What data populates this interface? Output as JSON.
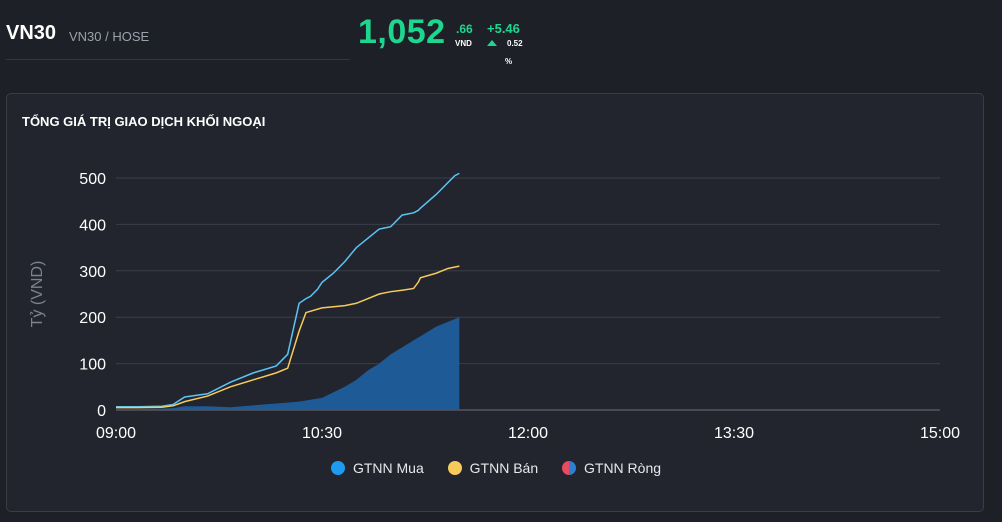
{
  "header": {
    "symbol": "VN30",
    "exchange": "VN30 / HOSE",
    "price": "1,052",
    "price_decimal": ".66",
    "currency": "VND",
    "change": "+5.46",
    "change_pct": "0.52",
    "pct_sign": "%",
    "up_color": "#1fd68f"
  },
  "panel": {
    "title": "TỔNG GIÁ TRỊ GIAO DỊCH KHỐI NGOẠI"
  },
  "chart_data": {
    "type": "line",
    "title": "TỔNG GIÁ TRỊ GIAO DỊCH KHỐI NGOẠI",
    "xlabel": "",
    "ylabel": "Tỷ (VND)",
    "ylim": [
      0,
      500
    ],
    "yticks": [
      0,
      100,
      200,
      300,
      400,
      500
    ],
    "xticks": [
      "09:00",
      "10:30",
      "12:00",
      "13:30",
      "15:00"
    ],
    "xlim": [
      "09:00",
      "15:00"
    ],
    "grid": true,
    "legend_position": "bottom",
    "series": [
      {
        "name": "GTNN Mua",
        "kind": "line",
        "color": "#5bc4f5",
        "x": [
          "09:00",
          "09:10",
          "09:20",
          "09:25",
          "09:30",
          "09:40",
          "09:50",
          "10:00",
          "10:10",
          "10:15",
          "10:20",
          "10:23",
          "10:25",
          "10:28",
          "10:30",
          "10:35",
          "10:40",
          "10:45",
          "10:50",
          "10:55",
          "11:00",
          "11:05",
          "11:10",
          "11:12",
          "11:13",
          "11:20",
          "11:25",
          "11:28",
          "11:30"
        ],
        "y": [
          7,
          7,
          8,
          12,
          28,
          35,
          60,
          80,
          95,
          120,
          230,
          240,
          245,
          260,
          275,
          295,
          320,
          350,
          370,
          390,
          395,
          420,
          425,
          430,
          435,
          465,
          490,
          505,
          510
        ]
      },
      {
        "name": "GTNN Bán",
        "kind": "line",
        "color": "#f7cb5b",
        "x": [
          "09:00",
          "09:10",
          "09:20",
          "09:25",
          "09:30",
          "09:40",
          "09:50",
          "10:00",
          "10:10",
          "10:15",
          "10:20",
          "10:23",
          "10:30",
          "10:40",
          "10:45",
          "10:50",
          "10:55",
          "11:00",
          "11:05",
          "11:10",
          "11:12",
          "11:13",
          "11:20",
          "11:25",
          "11:30"
        ],
        "y": [
          5,
          5,
          6,
          9,
          18,
          30,
          50,
          65,
          80,
          90,
          170,
          210,
          220,
          225,
          230,
          240,
          250,
          255,
          258,
          262,
          275,
          285,
          295,
          305,
          310
        ]
      },
      {
        "name": "GTNN Ròng",
        "kind": "area",
        "color": "#1f5e9c",
        "legend_colors": [
          "#e84a5f",
          "#2e7fd1"
        ],
        "x": [
          "09:00",
          "09:10",
          "09:20",
          "09:25",
          "09:30",
          "09:40",
          "09:50",
          "10:00",
          "10:10",
          "10:20",
          "10:30",
          "10:40",
          "10:45",
          "10:50",
          "10:55",
          "11:00",
          "11:05",
          "11:10",
          "11:15",
          "11:20",
          "11:25",
          "11:30"
        ],
        "y": [
          2,
          2,
          3,
          4,
          8,
          8,
          6,
          10,
          14,
          18,
          26,
          50,
          65,
          85,
          100,
          120,
          135,
          150,
          165,
          180,
          190,
          200
        ]
      }
    ]
  }
}
